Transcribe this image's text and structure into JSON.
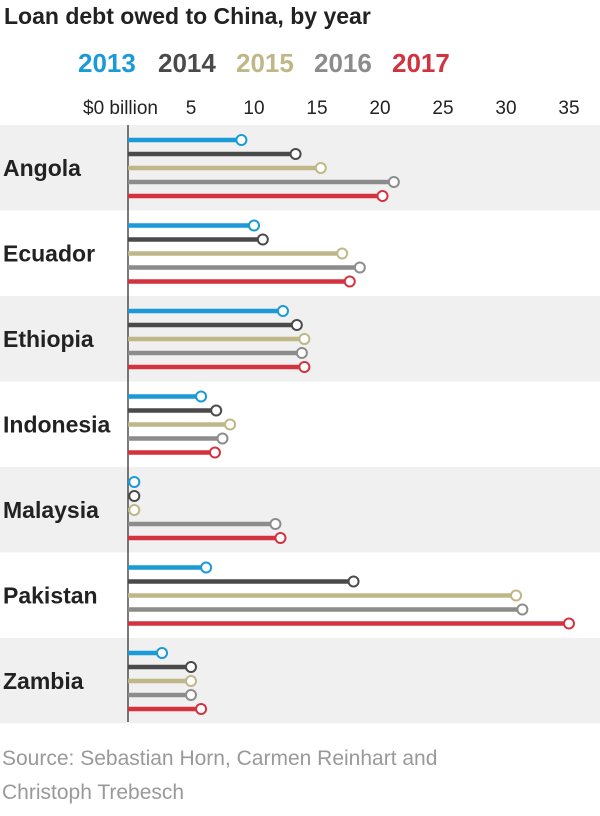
{
  "chart_data": {
    "type": "bar",
    "title": "Loan debt owed to China, by year",
    "tick_labels": [
      "$0 billion",
      "5",
      "10",
      "15",
      "20",
      "25",
      "30",
      "35"
    ],
    "ticks": [
      0,
      5,
      10,
      15,
      20,
      25,
      30,
      35
    ],
    "xlim": [
      0,
      35
    ],
    "grid": false,
    "legend_position": "top",
    "series": [
      {
        "name": "2013",
        "color": "#1a9ad6",
        "values": [
          9.0,
          10.0,
          12.3,
          5.8,
          0.5,
          6.2,
          2.7
        ]
      },
      {
        "name": "2014",
        "color": "#4a4a4a",
        "values": [
          13.3,
          10.7,
          13.4,
          7.0,
          0.5,
          17.9,
          5.0
        ]
      },
      {
        "name": "2015",
        "color": "#bfb787",
        "values": [
          15.3,
          17.0,
          14.0,
          8.1,
          0.5,
          30.8,
          5.0
        ]
      },
      {
        "name": "2016",
        "color": "#8c8c8c",
        "values": [
          21.1,
          18.4,
          13.8,
          7.5,
          11.7,
          31.3,
          5.0
        ]
      },
      {
        "name": "2017",
        "color": "#d3323f",
        "values": [
          20.2,
          17.6,
          14.0,
          6.9,
          12.1,
          35.0,
          5.8
        ]
      }
    ],
    "categories": [
      "Angola",
      "Ecuador",
      "Ethiopia",
      "Indonesia",
      "Malaysia",
      "Pakistan",
      "Zambia"
    ]
  },
  "source_lines": [
    "Source: Sebastian Horn, Carmen Reinhart and",
    "Christoph Trebesch"
  ]
}
